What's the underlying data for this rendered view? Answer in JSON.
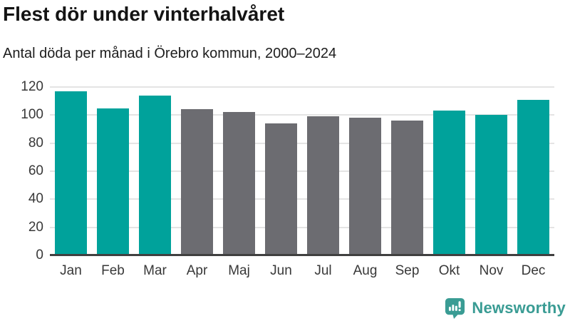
{
  "title": "Flest dör under vinterhalvåret",
  "subtitle": "Antal döda per månad i Örebro kommun, 2000–2024",
  "branding": {
    "logo_text": "Newsworthy",
    "logo_icon": "bar-chart-speech-bubble-icon",
    "logo_color": "#3a9c94"
  },
  "colors": {
    "winter_bar": "#00a29b",
    "summer_bar": "#6c6c71",
    "grid_line": "#e4e4e4",
    "axis_line": "#404040",
    "tick_text": "#383838",
    "title_text": "#141414"
  },
  "chart_data": {
    "type": "bar",
    "title": "Flest dör under vinterhalvåret",
    "subtitle": "Antal döda per månad i Örebro kommun, 2000–2024",
    "categories": [
      "Jan",
      "Feb",
      "Mar",
      "Apr",
      "Maj",
      "Jun",
      "Jul",
      "Aug",
      "Sep",
      "Okt",
      "Nov",
      "Dec"
    ],
    "values": [
      117,
      105,
      114,
      104,
      102,
      94,
      99,
      98,
      96,
      103,
      100,
      111
    ],
    "bar_colors": [
      "#00a29b",
      "#00a29b",
      "#00a29b",
      "#6c6c71",
      "#6c6c71",
      "#6c6c71",
      "#6c6c71",
      "#6c6c71",
      "#6c6c71",
      "#00a29b",
      "#00a29b",
      "#00a29b"
    ],
    "xlabel": "",
    "ylabel": "",
    "ylim": [
      0,
      120
    ],
    "yticks": [
      0,
      20,
      40,
      60,
      80,
      100,
      120
    ],
    "grid": true,
    "legend": false
  }
}
